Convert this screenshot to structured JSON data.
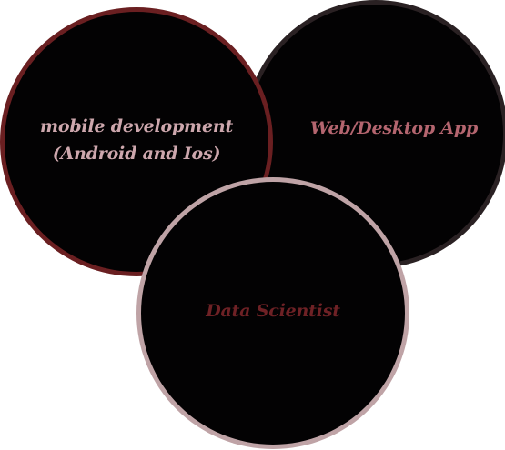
{
  "diagram": {
    "circles": [
      {
        "id": "web",
        "label": "Web/Desktop App",
        "border_color": "#2a2123",
        "text_color": "#b4656f"
      },
      {
        "id": "mobile",
        "label_line1": "mobile development",
        "label_line2": "(Android and Ios)",
        "border_color": "#6a1f21",
        "text_color": "#cda7ad"
      },
      {
        "id": "data",
        "label": "Data Scientist",
        "border_color": "#bfa3a6",
        "text_color": "#6e2125"
      }
    ],
    "fill_color": "#030203"
  }
}
